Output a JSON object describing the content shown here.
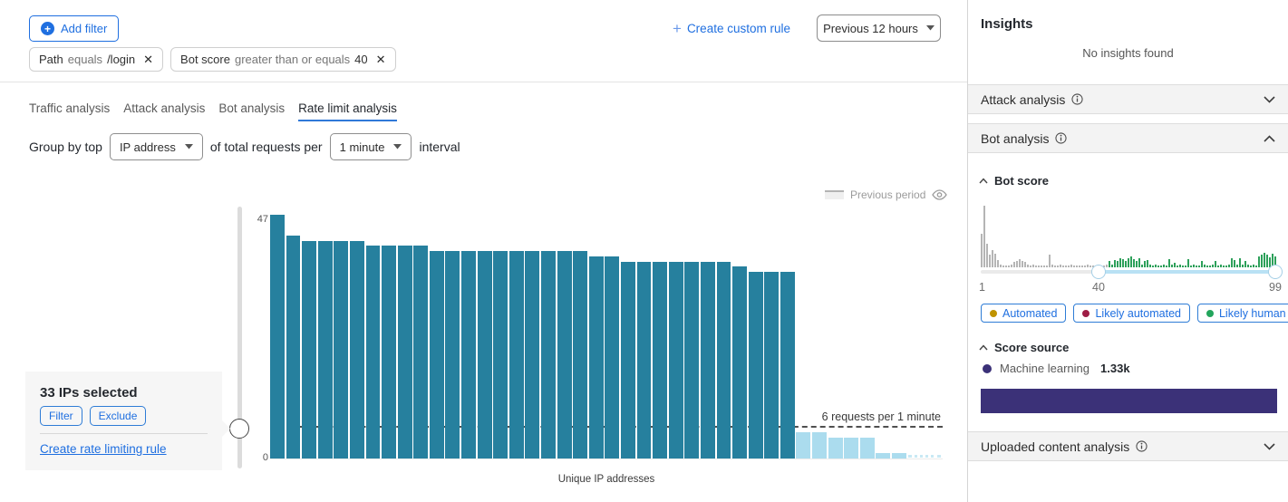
{
  "filter_bar": {
    "add_filter_label": "Add filter",
    "chips": [
      {
        "field": "Path",
        "operator": "equals",
        "value": "/login"
      },
      {
        "field": "Bot score",
        "operator": "greater than or equals",
        "value": "40"
      }
    ],
    "create_custom_rule_label": "Create custom rule",
    "time_range_value": "Previous 12 hours"
  },
  "tabs": [
    {
      "label": "Traffic analysis",
      "active": false
    },
    {
      "label": "Attack analysis",
      "active": false
    },
    {
      "label": "Bot analysis",
      "active": false
    },
    {
      "label": "Rate limit analysis",
      "active": true
    }
  ],
  "group_by": {
    "prefix": "Group by top",
    "dimension_value": "IP address",
    "middle": "of total requests per",
    "interval_value": "1 minute",
    "suffix": "interval"
  },
  "chart_data": {
    "type": "bar",
    "xlabel": "Unique IP addresses",
    "ylim": [
      0,
      47
    ],
    "y_axis": {
      "max_label": "47",
      "min_label": "0"
    },
    "legend": {
      "previous_period_label": "Previous period"
    },
    "threshold": {
      "value": 6,
      "label": "6 requests per 1 minute"
    },
    "selection_count": 33,
    "series": [
      {
        "name": "selected-above-threshold",
        "color": "#26809e",
        "values": [
          47,
          43,
          42,
          42,
          42,
          42,
          41,
          41,
          41,
          41,
          40,
          40,
          40,
          40,
          40,
          40,
          40,
          40,
          40,
          40,
          39,
          39,
          38,
          38,
          38,
          38,
          38,
          38,
          38,
          37,
          36,
          36,
          36
        ]
      },
      {
        "name": "below-threshold",
        "color": "#abdcee",
        "values": [
          5,
          5,
          4,
          4,
          4,
          1,
          1
        ]
      }
    ],
    "tail_style": "dotted"
  },
  "selection_panel": {
    "title": "33 IPs selected",
    "filter_label": "Filter",
    "exclude_label": "Exclude",
    "link_label": "Create rate limiting rule"
  },
  "sidebar": {
    "title": "Insights",
    "empty_message": "No insights found",
    "attack_section_label": "Attack analysis",
    "bot_section_label": "Bot analysis",
    "uploaded_section_label": "Uploaded content analysis",
    "bot_score": {
      "title": "Bot score",
      "min_label": "1",
      "low_label": "40",
      "high_label": "99",
      "badges": [
        {
          "label": "Automated",
          "dot_color": "#bf9300"
        },
        {
          "label": "Likely automated",
          "dot_color": "#9e1d45"
        },
        {
          "label": "Likely human",
          "dot_color": "#23a55c"
        }
      ],
      "histogram": {
        "gray_color": "#b5b5b5",
        "green_color": "#2da05a",
        "gray_values": [
          55,
          100,
          38,
          20,
          28,
          22,
          12,
          5,
          3,
          3,
          3,
          4,
          9,
          11,
          13,
          11,
          9,
          4,
          3,
          4,
          3,
          3,
          3,
          3,
          3,
          20,
          4,
          3,
          3,
          4,
          3,
          3,
          3,
          4,
          3,
          3,
          3,
          3,
          3,
          4,
          3,
          3,
          3,
          4,
          3,
          3,
          4
        ],
        "green_values": [
          10,
          4,
          12,
          10,
          14,
          13,
          10,
          15,
          17,
          13,
          11,
          15,
          4,
          10,
          12,
          4,
          3,
          4,
          3,
          3,
          4,
          3,
          13,
          4,
          7,
          3,
          4,
          3,
          3,
          13,
          3,
          4,
          3,
          3,
          10,
          4,
          3,
          3,
          4,
          10,
          3,
          4,
          3,
          3,
          4,
          14,
          12,
          4,
          14,
          4,
          10,
          4,
          3,
          4,
          3,
          18,
          20,
          23,
          20,
          16,
          22,
          18
        ]
      }
    },
    "score_source": {
      "title": "Score source",
      "legend_label": "Machine learning",
      "count": "1.33k",
      "bar_color": "#3b3178"
    }
  }
}
